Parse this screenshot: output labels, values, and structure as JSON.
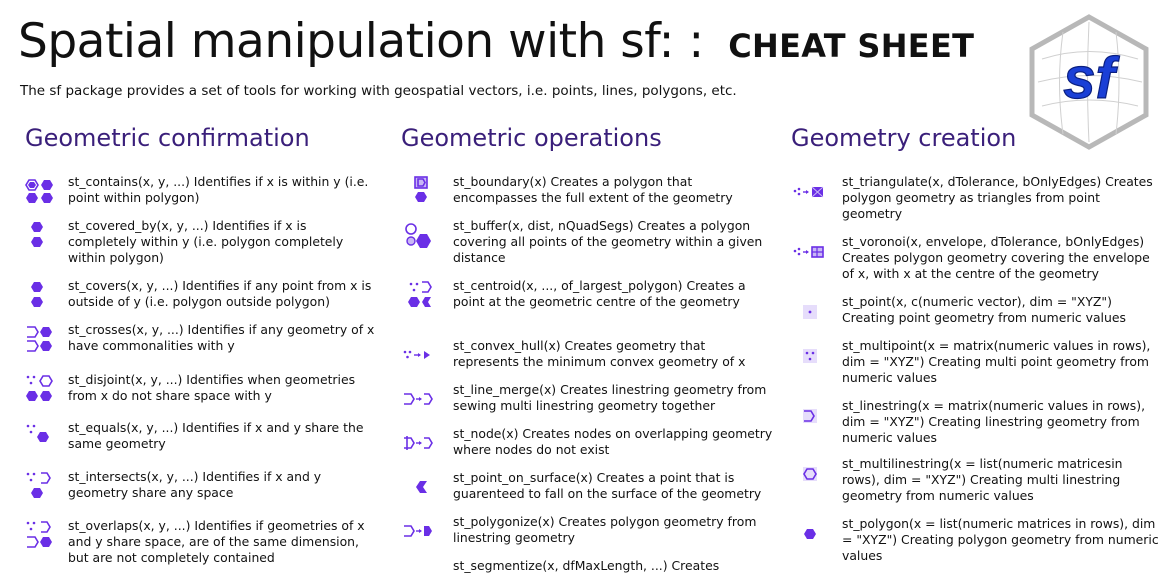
{
  "header": {
    "title_main": "Spatial manipulation with sf: : ",
    "title_cheat": "CHEAT SHEET",
    "subtitle": "The sf package provides a set of tools for working with geospatial vectors, i.e. points, lines, polygons, etc.",
    "logo_text": "sf"
  },
  "columns": [
    {
      "heading": "Geometric confirmation",
      "entries": [
        {
          "text": "st_contains(x, y, ...) Identifies if x is within y (i.e. point within polygon)",
          "icon": "contains-icon"
        },
        {
          "text": "st_covered_by(x, y, ...) Identifies if x is completely within y (i.e. polygon  completely within polygon)",
          "icon": "covered-by-icon"
        },
        {
          "text": "st_covers(x, y, ...) Identifies if any point from x is outside of y (i.e. polygon outside polygon)",
          "icon": "covers-icon"
        },
        {
          "text": "st_crosses(x, y, ...) Identifies if any geometry of x have commonalities with y",
          "icon": "crosses-icon"
        },
        {
          "text": "st_disjoint(x, y, ...) Identifies when geometries from x do not share space with y",
          "icon": "disjoint-icon"
        },
        {
          "text": "st_equals(x, y, ...) Identifies if x and y share the same geometry",
          "icon": "equals-icon"
        },
        {
          "text": "st_intersects(x, y, ...) Identifies if x and y geometry share any space",
          "icon": "intersects-icon"
        },
        {
          "text": "st_overlaps(x, y, ...) Identifies if geometries of x and y share space, are of the same dimension, but are not completely contained",
          "icon": "overlaps-icon"
        }
      ]
    },
    {
      "heading": "Geometric operations",
      "entries": [
        {
          "text": "st_boundary(x) Creates a polygon that encompasses the full extent of the geometry",
          "icon": "boundary-icon"
        },
        {
          "text": "st_buffer(x, dist, nQuadSegs) Creates a polygon covering all points of the geometry within a given distance",
          "icon": "buffer-icon"
        },
        {
          "text": "st_centroid(x, ..., of_largest_polygon) Creates a point at the geometric centre of the geometry",
          "icon": "centroid-icon"
        },
        {
          "text": "st_convex_hull(x) Creates geometry that represents the minimum convex geometry of x",
          "icon": "convex-hull-icon"
        },
        {
          "text": "st_line_merge(x) Creates linestring geometry from sewing multi linestring geometry together",
          "icon": "line-merge-icon"
        },
        {
          "text": "st_node(x) Creates nodes on overlapping geometry where nodes do not exist",
          "icon": "node-icon"
        },
        {
          "text": "st_point_on_surface(x) Creates a point that is guarenteed to fall on the surface of the geometry",
          "icon": "point-on-surface-icon"
        },
        {
          "text": "st_polygonize(x) Creates polygon geometry from linestring geometry",
          "icon": "polygonize-icon"
        },
        {
          "text": "st_segmentize(x, dfMaxLength, ...) Creates",
          "icon": "segmentize-icon"
        }
      ]
    },
    {
      "heading": "Geometry creation",
      "entries": [
        {
          "text": "st_triangulate(x, dTolerance, bOnlyEdges) Creates polygon geometry as triangles from point geometry",
          "icon": "triangulate-icon"
        },
        {
          "text": "st_voronoi(x, envelope, dTolerance, bOnlyEdges) Creates polygon geometry covering the envelope of x, with x at the centre of the geometry",
          "icon": "voronoi-icon"
        },
        {
          "text": "st_point(x, c(numeric vector), dim = \"XYZ\") Creating point geometry from numeric values",
          "icon": "point-icon"
        },
        {
          "text": "st_multipoint(x = matrix(numeric values in rows), dim = \"XYZ\") Creating multi point geometry from numeric values",
          "icon": "multipoint-icon"
        },
        {
          "text": "st_linestring(x = matrix(numeric values in rows), dim = \"XYZ\") Creating linestring geometry from numeric values",
          "icon": "linestring-icon"
        },
        {
          "text": "st_multilinestring(x = list(numeric matricesin rows), dim = \"XYZ\") Creating multi linestring geometry from numeric values",
          "icon": "multilinestring-icon"
        },
        {
          "text": "st_polygon(x = list(numeric matrices in rows), dim = \"XYZ\") Creating polygon geometry from numeric values",
          "icon": "polygon-icon"
        }
      ]
    }
  ],
  "colors": {
    "heading": "#3a1f7a",
    "icon": "#6a2fe6",
    "logo_blue": "#1a3fd6"
  }
}
